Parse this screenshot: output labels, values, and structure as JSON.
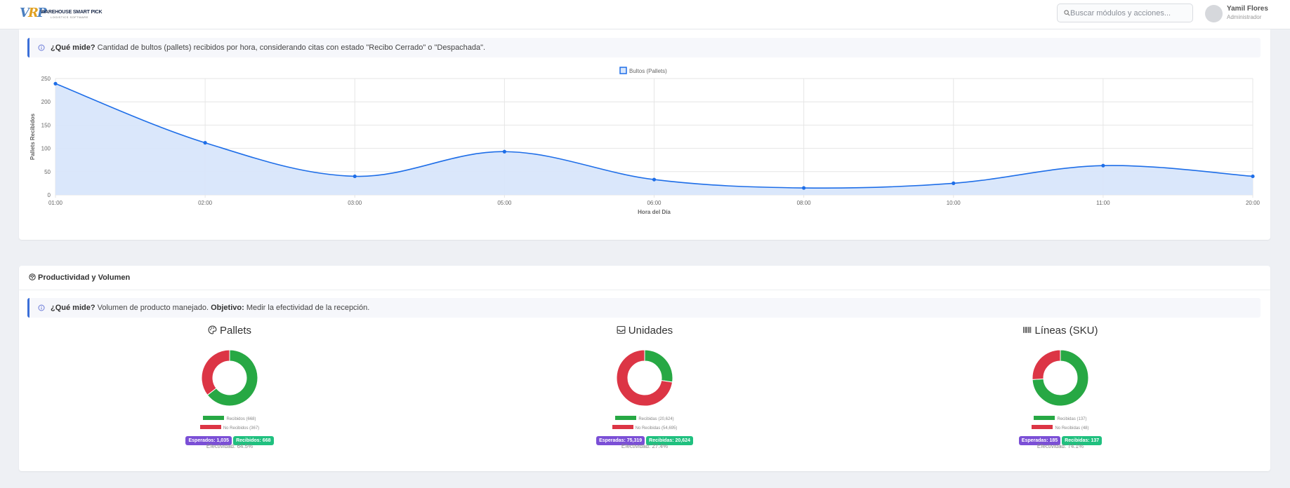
{
  "header": {
    "logo_mark": "VRP",
    "logo_text": "WAREHOUSE SMART PICK",
    "logo_sub": "LOGISTICS SOFTWARE",
    "search_placeholder": "Buscar módulos y acciones...",
    "user_name": "Yamil Flores",
    "user_role": "Administrador"
  },
  "hourly_card": {
    "info_label": "¿Qué mide?",
    "info_text": "Cantidad de bultos (pallets) recibidos por hora, considerando citas con estado \"Recibo Cerrado\" o \"Despachada\"."
  },
  "chart_data": {
    "type": "area",
    "categories": [
      "01:00",
      "02:00",
      "03:00",
      "05:00",
      "06:00",
      "08:00",
      "10:00",
      "11:00",
      "20:00"
    ],
    "series": [
      {
        "name": "Bultos (Pallets)",
        "values": [
          239,
          112,
          40,
          93,
          33,
          15,
          25,
          63,
          40
        ]
      }
    ],
    "xlabel": "Hora del Día",
    "ylabel": "Pallets Recibidos",
    "ylim": [
      0,
      250
    ],
    "yticks": [
      "0",
      "50",
      "100",
      "150",
      "200",
      "250"
    ],
    "grid": true,
    "legend_position": "top-center",
    "line_color": "#1e6ee8",
    "fill_color": "#d8e6fb"
  },
  "productivity_card": {
    "title": "Productividad y Volumen",
    "info_label": "¿Qué mide?",
    "info_text": "Volumen de producto manejado.",
    "objective_label": "Objetivo:",
    "objective_text": "Medir la efectividad de la recepción.",
    "colors": {
      "received": "#27a844",
      "not_received": "#dc3545",
      "expected_badge": "#7b4fd6",
      "received_badge": "#20c07f"
    },
    "donuts": [
      {
        "icon": "palette-icon",
        "title": "Pallets",
        "received": 668,
        "not_received": 367,
        "legend_received": "Recibidos (668)",
        "legend_not_received": "No Recibidos (367)",
        "badge_expected": "Esperados: 1,035",
        "badge_received": "Recibidos: 668",
        "effectiveness": "Efectividad: 64.5%"
      },
      {
        "icon": "inbox-icon",
        "title": "Unidades",
        "received": 20624,
        "not_received": 54695,
        "legend_received": "Recibidas (20,624)",
        "legend_not_received": "No Recibidas (54,695)",
        "badge_expected": "Esperadas: 75,319",
        "badge_received": "Recibidas: 20,624",
        "effectiveness": "Efectividad: 27.4%"
      },
      {
        "icon": "barcode-icon",
        "title": "Líneas (SKU)",
        "received": 137,
        "not_received": 48,
        "legend_received": "Recibidas (137)",
        "legend_not_received": "No Recibidas (48)",
        "badge_expected": "Esperadas: 185",
        "badge_received": "Recibidas: 137",
        "effectiveness": "Efectividad: 74.1%"
      }
    ]
  }
}
